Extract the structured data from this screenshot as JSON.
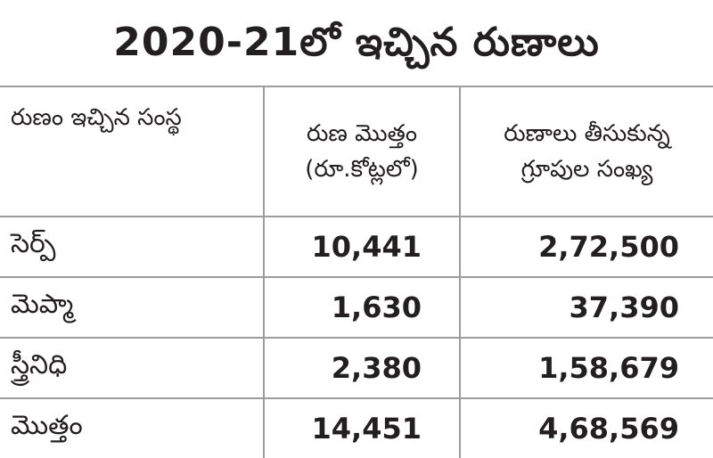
{
  "title": "2020-21లో ఇచ్చిన రుణాలు",
  "table": {
    "headers": {
      "institution": "రుణం ఇచ్చిన సంస్థ",
      "amount_line1": "రుణ మొత్తం",
      "amount_line2": "(రూ.కోట్లలో)",
      "groups_line1": "రుణాలు తీసుకున్న",
      "groups_line2": "గ్రూపుల సంఖ్య"
    },
    "rows": [
      {
        "institution": "సెర్ప్",
        "amount": "10,441",
        "groups": "2,72,500"
      },
      {
        "institution": "మెప్మా",
        "amount": "1,630",
        "groups": "37,390"
      },
      {
        "institution": "స్త్రీనిధి",
        "amount": "2,380",
        "groups": "1,58,679"
      },
      {
        "institution": "మొత్తం",
        "amount": "14,451",
        "groups": "4,68,569"
      }
    ]
  }
}
